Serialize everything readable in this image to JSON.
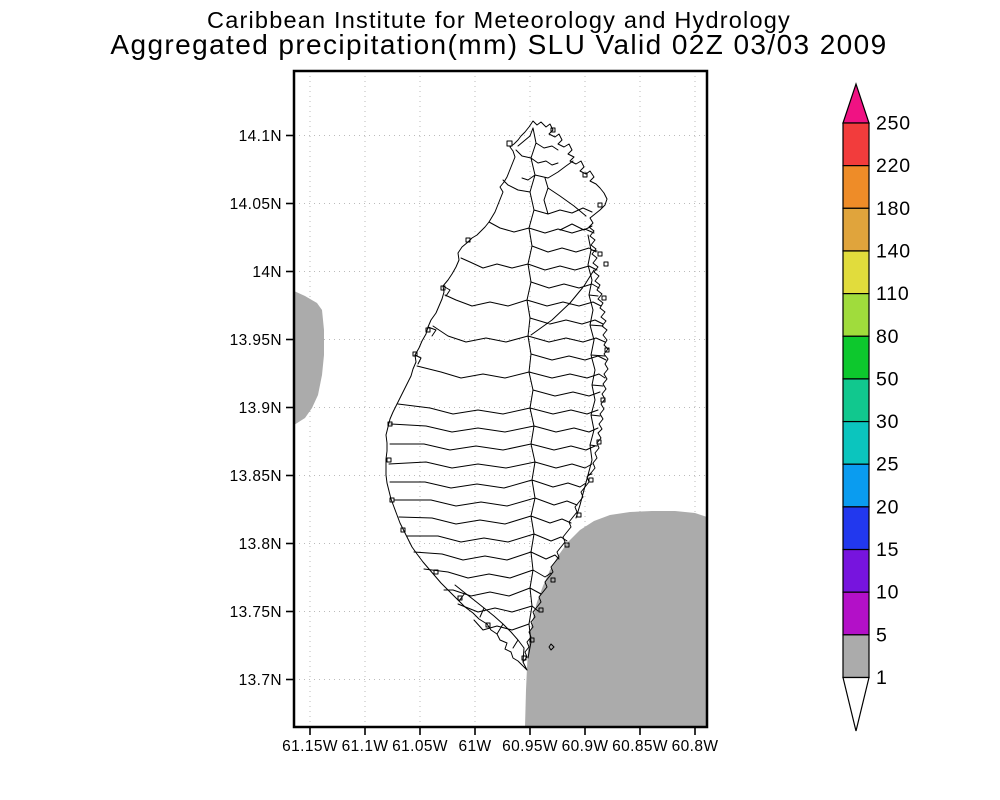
{
  "title": {
    "line1": "Caribbean Institute for Meteorology and Hydrology",
    "line2": "Aggregated precipitation(mm) SLU Valid 02Z 03/03 2009"
  },
  "axes": {
    "lat_labels": [
      "14.1N",
      "14.05N",
      "14N",
      "13.95N",
      "13.9N",
      "13.85N",
      "13.8N",
      "13.75N",
      "13.7N"
    ],
    "lon_labels": [
      "61.15W",
      "61.1W",
      "61.05W",
      "61W",
      "60.95W",
      "60.9W",
      "60.85W",
      "60.8W"
    ]
  },
  "colorbar": {
    "boundary_labels": [
      "250",
      "220",
      "180",
      "140",
      "110",
      "80",
      "50",
      "30",
      "25",
      "20",
      "15",
      "10",
      "5",
      "1"
    ],
    "segment_colors": [
      "#F23C3C",
      "#EE8C28",
      "#E0A43C",
      "#E1DC3C",
      "#A0DC3C",
      "#0DC82D",
      "#11C88E",
      "#0BC5BE",
      "#0A9CF0",
      "#2238EE",
      "#7714DE",
      "#B310C8",
      "#ABABAB"
    ],
    "above_color": "#F01283",
    "below_color": "#FFFFFF"
  },
  "colors": {
    "shade_1_5": "#ABABAB",
    "grid": "#BBBBBB",
    "line": "#000000",
    "background": "#FFFFFF"
  },
  "chart_data": {
    "type": "heatmap",
    "title": "Aggregated precipitation(mm) SLU Valid 02Z 03/03 2009",
    "subtitle": "Caribbean Institute for Meteorology and Hydrology",
    "xlabel_ticks": [
      "61.15W",
      "61.1W",
      "61.05W",
      "61W",
      "60.95W",
      "60.9W",
      "60.85W",
      "60.8W"
    ],
    "ylabel_ticks": [
      "14.1N",
      "14.05N",
      "14N",
      "13.95N",
      "13.9N",
      "13.85N",
      "13.8N",
      "13.75N",
      "13.7N"
    ],
    "legend_position": "right",
    "legend_levels_mm": [
      1,
      5,
      10,
      15,
      20,
      25,
      30,
      50,
      80,
      110,
      140,
      180,
      220,
      250
    ],
    "legend_colors_low_to_high": [
      "#FFFFFF",
      "#ABABAB",
      "#B310C8",
      "#7714DE",
      "#2238EE",
      "#0A9CF0",
      "#0BC5BE",
      "#11C88E",
      "#0DC82D",
      "#A0DC3C",
      "#E1DC3C",
      "#E0A43C",
      "#EE8C28",
      "#F23C3C",
      "#F01283"
    ],
    "grid": true,
    "regions": [
      {
        "value_range": "1-5 mm",
        "color": "#ABABAB",
        "location": "large lobe offshore to the southeast, overlapping the southeast coast of Saint Lucia down to the southern tip"
      },
      {
        "value_range": "1-5 mm",
        "color": "#ABABAB",
        "location": "small lobe on the west edge of the map between about 13.9N and 13.97N"
      },
      {
        "value_range": "<1 mm",
        "color": "#FFFFFF",
        "location": "remainder of the domain including most of Saint Lucia (watershed outlines shown)"
      }
    ]
  }
}
